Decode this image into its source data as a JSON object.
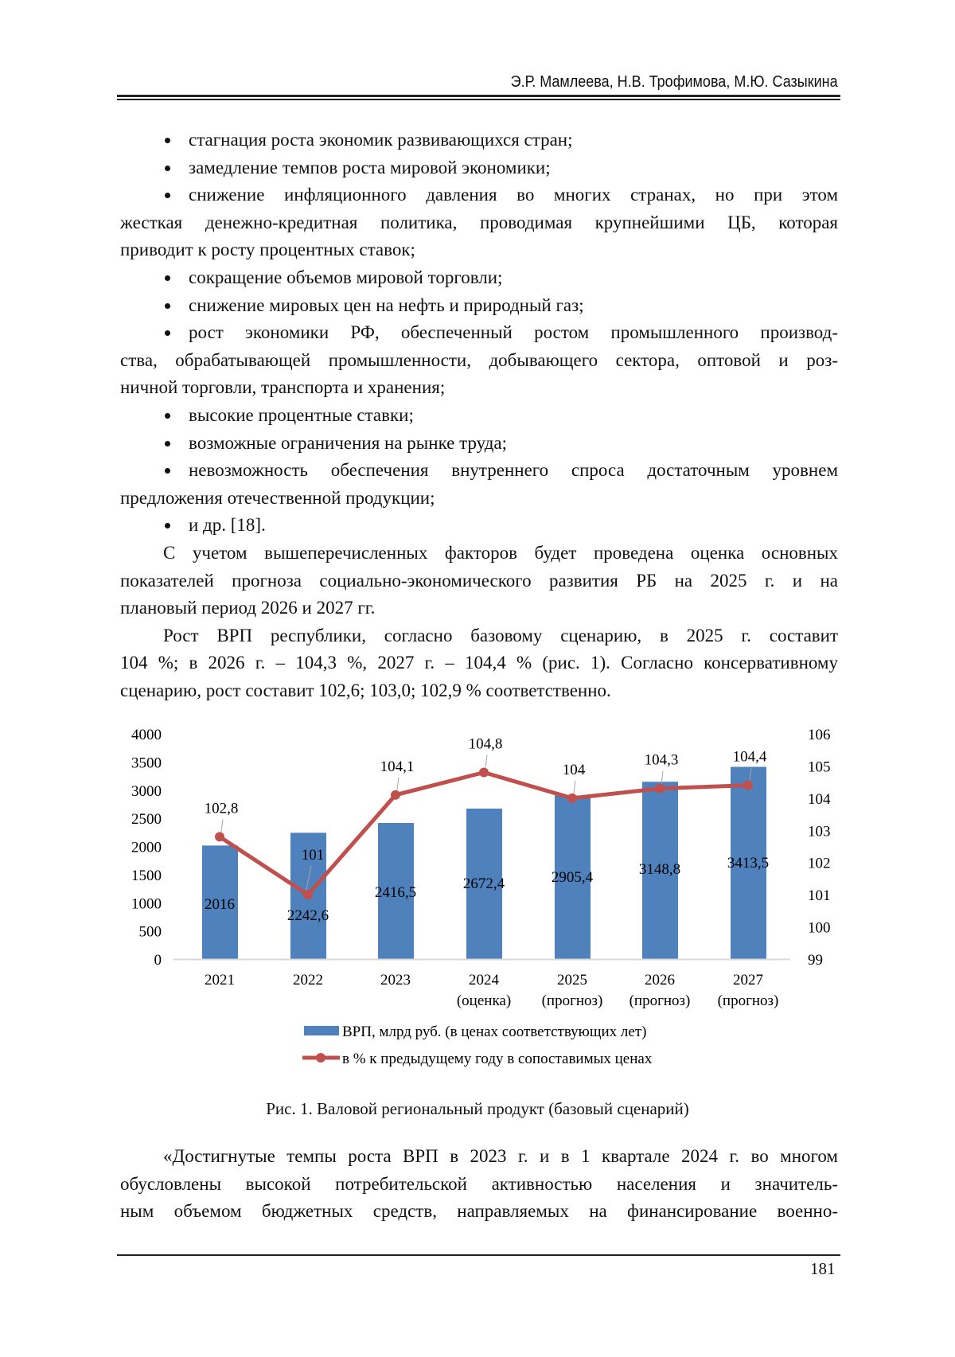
{
  "header": {
    "authors": "Э.Р. Мамлеева, Н.В. Трофимова, М.Ю. Сазыкина"
  },
  "body_lines": [
    {
      "text": "стагнация роста экономик развивающихся стран;",
      "bullet": true,
      "justify": false
    },
    {
      "text": "замедление темпов роста мировой экономики;",
      "bullet": true,
      "justify": false
    },
    {
      "text": "снижение инфляционного давления во многих странах, но при этом",
      "bullet": true,
      "justify": true
    },
    {
      "text": "жесткая денежно-кредитная политика, проводимая крупнейшими ЦБ, которая",
      "justify": true
    },
    {
      "text": "приводит к росту процентных ставок;",
      "justify": false
    },
    {
      "text": "сокращение объемов мировой торговли;",
      "bullet": true,
      "justify": false
    },
    {
      "text": "снижение мировых цен на нефть и природный газ;",
      "bullet": true,
      "justify": false
    },
    {
      "text": "рост экономики РФ, обеспеченный ростом промышленного производ-",
      "bullet": true,
      "justify": true
    },
    {
      "text": "ства, обрабатывающей промышленности, добывающего сектора, оптовой и роз-",
      "justify": true
    },
    {
      "text": "ничной торговли, транспорта и хранения;",
      "justify": false
    },
    {
      "text": "высокие процентные ставки;",
      "bullet": true,
      "justify": false
    },
    {
      "text": "возможные ограничения на рынке труда;",
      "bullet": true,
      "justify": false
    },
    {
      "text": "невозможность обеспечения внутреннего спроса достаточным уровнем",
      "bullet": true,
      "justify": true
    },
    {
      "text": "предложения отечественной продукции;",
      "justify": false
    },
    {
      "text": "и др. [18].",
      "bullet": true,
      "justify": false
    },
    {
      "text": "С учетом вышеперечисленных факторов будет проведена оценка основных",
      "indent": true,
      "justify": true
    },
    {
      "text": "показателей прогноза социально-экономического развития РБ на 2025 г. и на",
      "justify": true
    },
    {
      "text": "плановый период 2026 и 2027 гг.",
      "justify": false
    },
    {
      "text": "Рост ВРП республики, согласно базовому сценарию, в 2025 г. составит",
      "indent": true,
      "justify": true
    },
    {
      "text": "104 %; в 2026 г. – 104,3 %, 2027 г. – 104,4 % (рис. 1). Согласно консервативному",
      "justify": true
    },
    {
      "text": "сценарию, рост составит 102,6; 103,0; 102,9 % соответственно.",
      "justify": false
    }
  ],
  "after_lines": [
    {
      "text": "«Достигнутые темпы роста ВРП в 2023 г. и в 1 квартале 2024 г. во многом",
      "indent": true,
      "justify": true
    },
    {
      "text": "обусловлены высокой потребительской активностью населения и значитель-",
      "justify": true
    },
    {
      "text": "ным объемом бюджетных средств, направляемых на финансирование военно-",
      "justify": true
    }
  ],
  "caption": "Рис. 1. Валовой региональный продукт (базовый сценарий)",
  "page_number": "181",
  "chart_data": {
    "type": "bar+line",
    "categories": [
      [
        "2021"
      ],
      [
        "2022"
      ],
      [
        "2023"
      ],
      [
        "2024",
        "(оценка)"
      ],
      [
        "2025",
        "(прогноз)"
      ],
      [
        "2026",
        "(прогноз)"
      ],
      [
        "2027",
        "(прогноз)"
      ]
    ],
    "series": [
      {
        "name": "ВРП, млрд руб. (в ценах соответствующих лет)",
        "type": "bar",
        "axis": "left",
        "color": "#4F81BD",
        "values": [
          2016,
          2242.6,
          2416.5,
          2672.4,
          2905.4,
          3148.8,
          3413.5
        ],
        "labels": [
          "2016",
          "2242,6",
          "2416,5",
          "2672,4",
          "2905,4",
          "3148,8",
          "3413,5"
        ]
      },
      {
        "name": "в % к предыдущему году в сопоставимых ценах",
        "type": "line",
        "axis": "right",
        "color": "#C0504D",
        "values": [
          102.8,
          101,
          104.1,
          104.8,
          104,
          104.3,
          104.4
        ],
        "labels": [
          "102,8",
          "101",
          "104,1",
          "104,8",
          "104",
          "104,3",
          "104,4"
        ]
      }
    ],
    "left_axis": {
      "range": [
        0,
        4000
      ],
      "ticks": [
        "0",
        "500",
        "1000",
        "1500",
        "2000",
        "2500",
        "3000",
        "3500",
        "4000"
      ]
    },
    "right_axis": {
      "range": [
        99,
        106
      ],
      "ticks": [
        "99",
        "100",
        "101",
        "102",
        "103",
        "104",
        "105",
        "106"
      ]
    },
    "grid": false,
    "legend": "bottom"
  }
}
